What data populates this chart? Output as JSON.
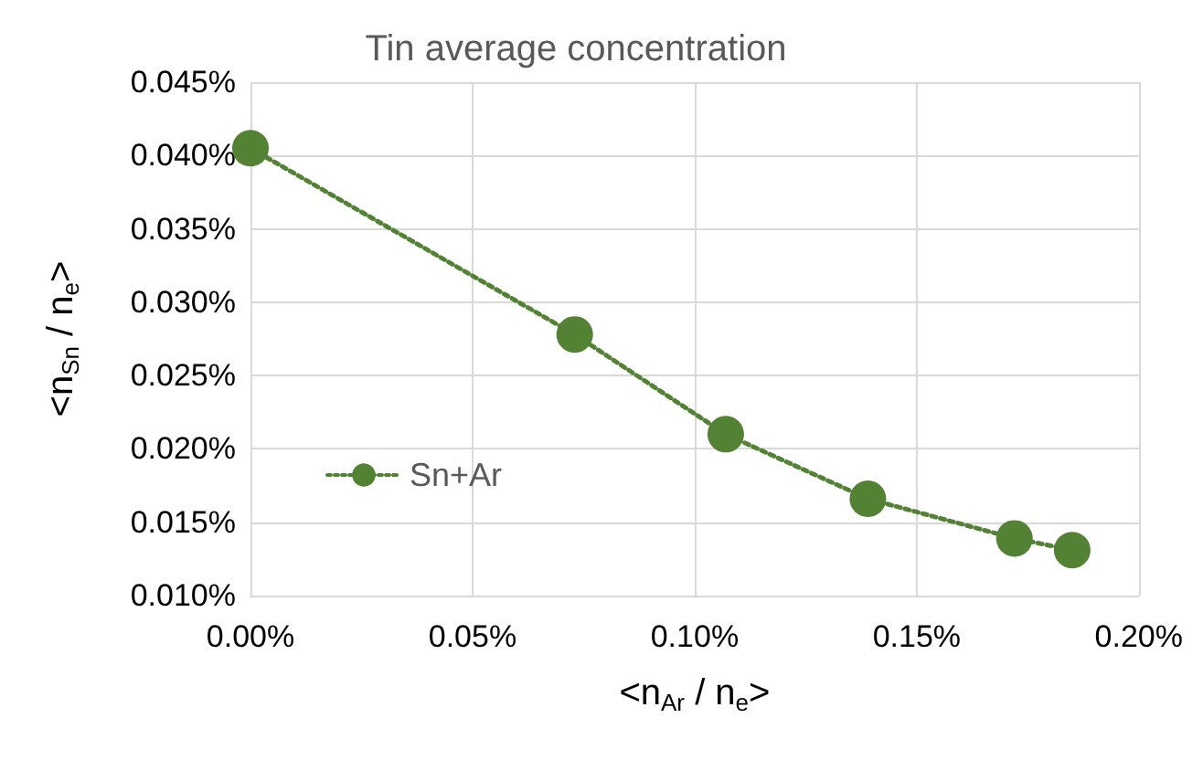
{
  "chart_data": {
    "type": "line",
    "title": "Tin average concentration",
    "xlabel": "<n$_{Ar}$ / n$_{e}$>",
    "ylabel": "<n$_{Sn}$ / n$_{e}$>",
    "x": [
      0,
      0.073,
      0.107,
      0.139,
      0.172,
      0.185
    ],
    "series": [
      {
        "name": "Sn+Ar",
        "color": "#548235",
        "values": [
          0.0405,
          0.0278,
          0.021,
          0.0166,
          0.0139,
          0.0131
        ]
      }
    ],
    "xlim": [
      0,
      0.2
    ],
    "xticks": [
      {
        "value": 0,
        "label": "0.00%"
      },
      {
        "value": 0.05,
        "label": "0.05%"
      },
      {
        "value": 0.1,
        "label": "0.10%"
      },
      {
        "value": 0.15,
        "label": "0.15%"
      },
      {
        "value": 0.2,
        "label": "0.20%"
      }
    ],
    "ylim": [
      0.01,
      0.045
    ],
    "yticks": [
      {
        "value": 0.01,
        "label": "0.010%"
      },
      {
        "value": 0.015,
        "label": "0.015%"
      },
      {
        "value": 0.02,
        "label": "0.020%"
      },
      {
        "value": 0.025,
        "label": "0.025%"
      },
      {
        "value": 0.03,
        "label": "0.030%"
      },
      {
        "value": 0.035,
        "label": "0.035%"
      },
      {
        "value": 0.04,
        "label": "0.040%"
      },
      {
        "value": 0.045,
        "label": "0.045%"
      }
    ],
    "grid": true,
    "legend": "left",
    "marker": "circle",
    "line_style": "dotted"
  }
}
